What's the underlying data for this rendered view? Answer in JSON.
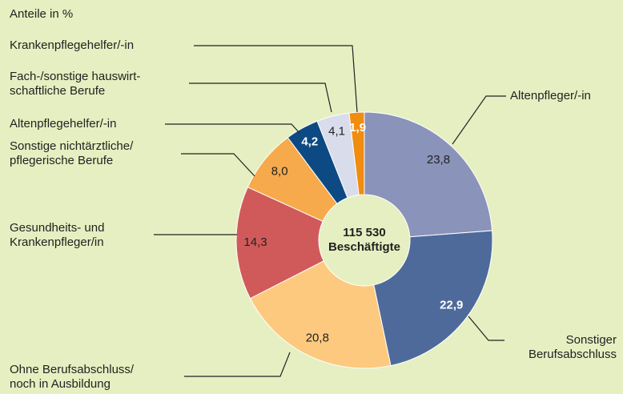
{
  "chart_data": {
    "type": "donut",
    "title": "Anteile in %",
    "center_label": [
      "115 530",
      "Beschäftigte"
    ],
    "categories": [
      [
        "Altenpfleger/-in"
      ],
      [
        "Sonstiger",
        "Berufsabschluss"
      ],
      [
        "Ohne Berufsabschluss/",
        "noch in Ausbildung"
      ],
      [
        "Gesundheits- und",
        "Krankenpfleger/in"
      ],
      [
        "Sonstige nichtärztliche/",
        "pflegerische Berufe"
      ],
      [
        "Altenpflegehelfer/-in"
      ],
      [
        "Fach-/sonstige hauswirt-",
        "schaftliche Berufe"
      ],
      [
        "Krankenpflegehelfer/-in"
      ]
    ],
    "values": [
      23.8,
      22.9,
      20.8,
      14.3,
      8.0,
      4.2,
      4.1,
      1.9
    ],
    "value_labels": [
      "23,8",
      "22,9",
      "20,8",
      "14,3",
      "8,0",
      "4,2",
      "4,1",
      "1,9"
    ],
    "colors": [
      "#8a93b9",
      "#4e6a9b",
      "#fcc97f",
      "#d05a5a",
      "#f6aa4c",
      "#0d4a83",
      "#d9dcea",
      "#f08c10"
    ],
    "label_colors": [
      "#222222",
      "#ffffff",
      "#222222",
      "#222222",
      "#222222",
      "#ffffff",
      "#222222",
      "#ffffff"
    ]
  }
}
